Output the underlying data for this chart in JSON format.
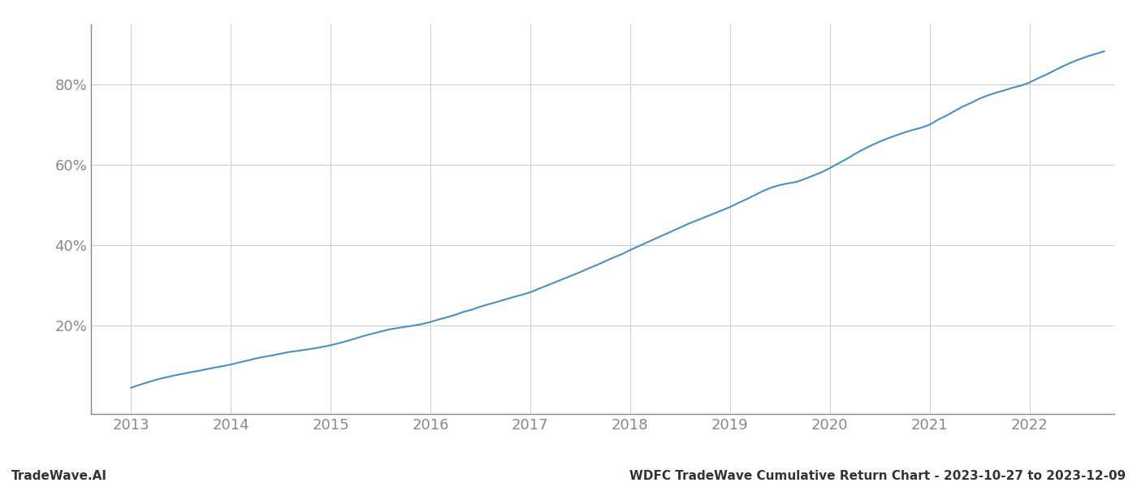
{
  "title": "WDFC TradeWave Cumulative Return Chart - 2023-10-27 to 2023-12-09",
  "watermark": "TradeWave.AI",
  "line_color": "#4a90c4",
  "background_color": "#ffffff",
  "grid_color": "#cccccc",
  "yticks": [
    20,
    40,
    60,
    80
  ],
  "xticks": [
    2013,
    2014,
    2015,
    2016,
    2017,
    2018,
    2019,
    2020,
    2021,
    2022
  ],
  "ylim": [
    -2,
    95
  ],
  "xlim": [
    2012.6,
    2022.85
  ],
  "data_x": [
    2013.0,
    2013.08,
    2013.17,
    2013.25,
    2013.33,
    2013.42,
    2013.5,
    2013.58,
    2013.67,
    2013.75,
    2013.83,
    2013.92,
    2014.0,
    2014.08,
    2014.17,
    2014.25,
    2014.33,
    2014.42,
    2014.5,
    2014.58,
    2014.67,
    2014.75,
    2014.83,
    2014.92,
    2015.0,
    2015.08,
    2015.17,
    2015.25,
    2015.33,
    2015.42,
    2015.5,
    2015.58,
    2015.67,
    2015.75,
    2015.83,
    2015.92,
    2016.0,
    2016.08,
    2016.17,
    2016.25,
    2016.33,
    2016.42,
    2016.5,
    2016.58,
    2016.67,
    2016.75,
    2016.83,
    2016.92,
    2017.0,
    2017.08,
    2017.17,
    2017.25,
    2017.33,
    2017.42,
    2017.5,
    2017.58,
    2017.67,
    2017.75,
    2017.83,
    2017.92,
    2018.0,
    2018.08,
    2018.17,
    2018.25,
    2018.33,
    2018.42,
    2018.5,
    2018.58,
    2018.67,
    2018.75,
    2018.83,
    2018.92,
    2019.0,
    2019.08,
    2019.17,
    2019.25,
    2019.33,
    2019.42,
    2019.5,
    2019.58,
    2019.67,
    2019.75,
    2019.83,
    2019.92,
    2020.0,
    2020.08,
    2020.17,
    2020.25,
    2020.33,
    2020.42,
    2020.5,
    2020.58,
    2020.67,
    2020.75,
    2020.83,
    2020.92,
    2021.0,
    2021.08,
    2021.17,
    2021.25,
    2021.33,
    2021.42,
    2021.5,
    2021.58,
    2021.67,
    2021.75,
    2021.83,
    2021.92,
    2022.0,
    2022.08,
    2022.17,
    2022.25,
    2022.33,
    2022.42,
    2022.5,
    2022.58,
    2022.67,
    2022.75
  ],
  "data_y": [
    4.5,
    5.2,
    5.9,
    6.5,
    7.0,
    7.5,
    7.9,
    8.3,
    8.7,
    9.1,
    9.5,
    9.9,
    10.3,
    10.8,
    11.3,
    11.8,
    12.2,
    12.6,
    13.0,
    13.4,
    13.7,
    14.0,
    14.3,
    14.7,
    15.1,
    15.6,
    16.2,
    16.8,
    17.4,
    18.0,
    18.5,
    19.0,
    19.4,
    19.7,
    20.0,
    20.4,
    20.9,
    21.5,
    22.1,
    22.7,
    23.4,
    24.0,
    24.7,
    25.3,
    25.9,
    26.5,
    27.1,
    27.7,
    28.3,
    29.1,
    30.0,
    30.8,
    31.6,
    32.5,
    33.3,
    34.2,
    35.1,
    36.0,
    36.9,
    37.8,
    38.8,
    39.7,
    40.7,
    41.6,
    42.5,
    43.5,
    44.4,
    45.3,
    46.2,
    47.0,
    47.8,
    48.7,
    49.5,
    50.5,
    51.5,
    52.5,
    53.5,
    54.4,
    55.0,
    55.4,
    55.8,
    56.5,
    57.3,
    58.2,
    59.2,
    60.3,
    61.5,
    62.7,
    63.8,
    64.9,
    65.8,
    66.6,
    67.4,
    68.1,
    68.7,
    69.3,
    70.0,
    71.2,
    72.3,
    73.4,
    74.5,
    75.5,
    76.5,
    77.3,
    78.0,
    78.6,
    79.2,
    79.8,
    80.5,
    81.5,
    82.5,
    83.5,
    84.5,
    85.5,
    86.3,
    87.0,
    87.7,
    88.3
  ]
}
